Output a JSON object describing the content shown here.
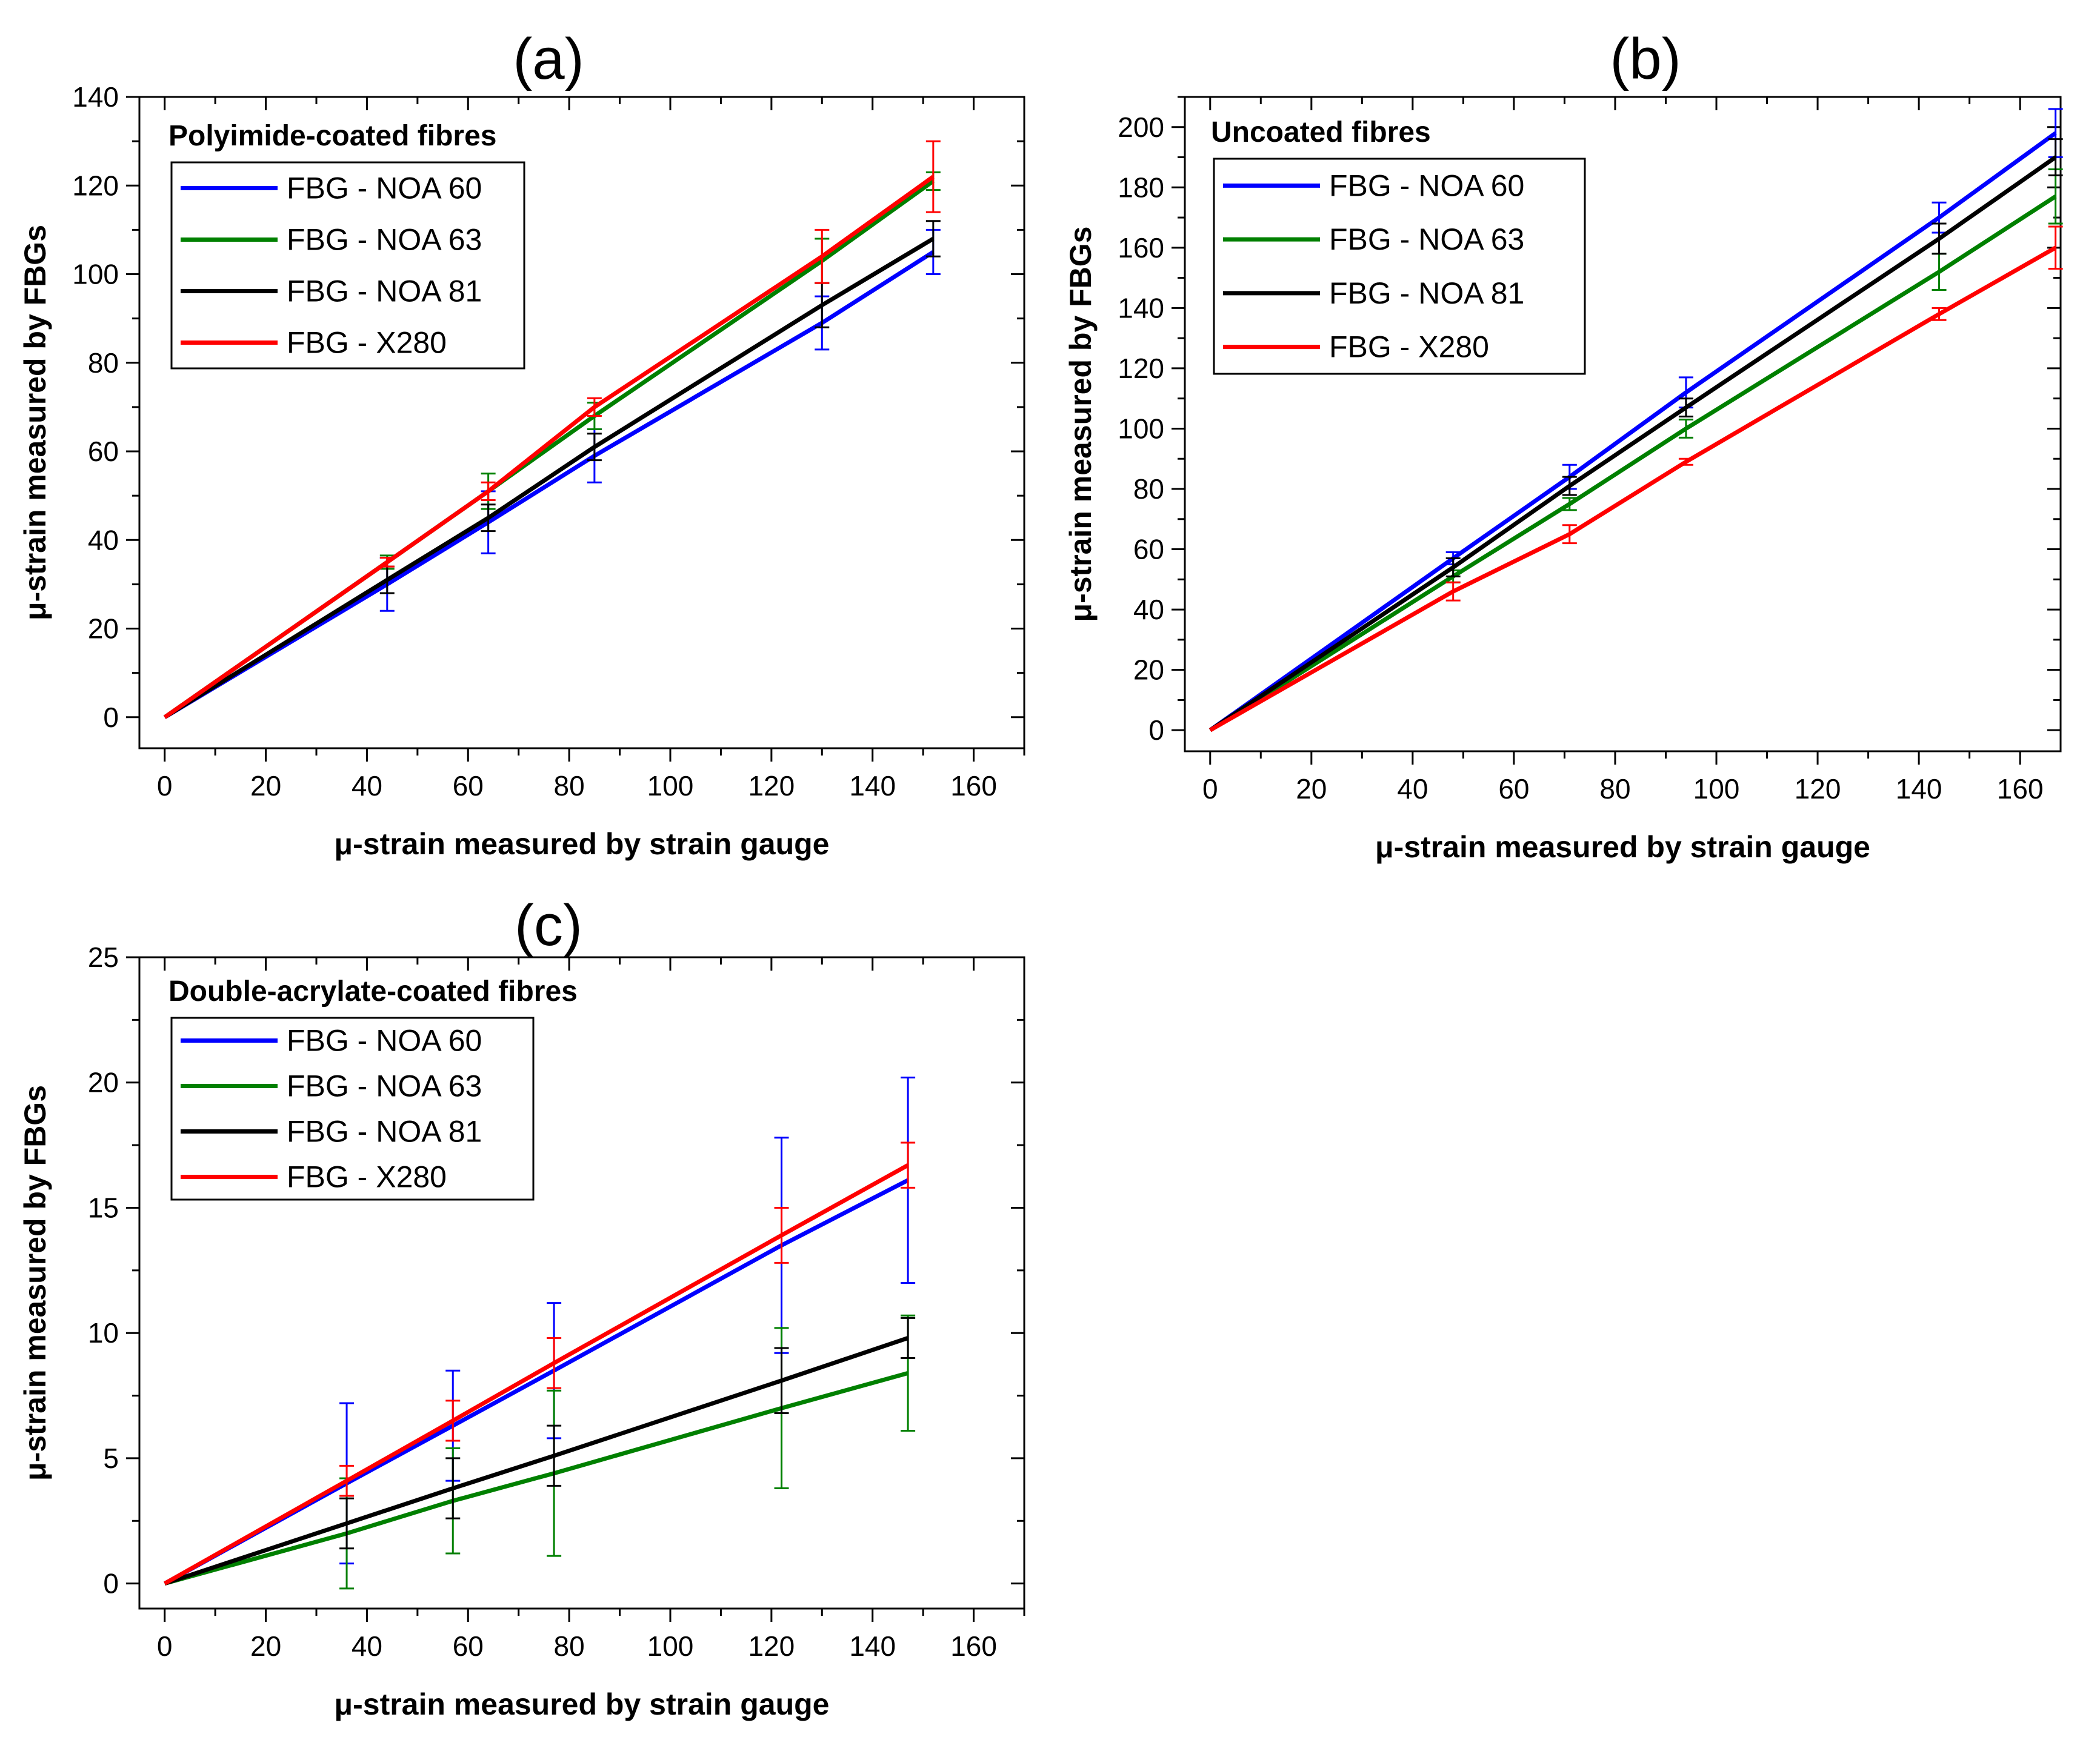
{
  "figure": {
    "series_names": [
      "FBG - NOA 60",
      "FBG - NOA 63",
      "FBG - NOA 81",
      "FBG - X280"
    ],
    "colors": {
      "FBG - NOA 60": "#0000ff",
      "FBG - NOA 63": "#008000",
      "FBG - NOA 81": "#000000",
      "FBG - X280": "#ff0000"
    }
  },
  "chart_data": [
    {
      "panel": "(a)",
      "type": "line",
      "legend_title": "Polyimide-coated fibres",
      "legend_position": "top-left",
      "xlabel": "μ-strain measured by strain gauge",
      "ylabel": "μ-strain measured by FBGs",
      "xlim": [
        -5,
        170
      ],
      "ylim": [
        -7,
        140
      ],
      "xticks": [
        0,
        20,
        40,
        60,
        80,
        100,
        120,
        140,
        160
      ],
      "yticks": [
        0,
        20,
        40,
        60,
        80,
        100,
        120,
        140
      ],
      "grid": false,
      "x": [
        0,
        44,
        64,
        85,
        130,
        152
      ],
      "series": [
        {
          "name": "FBG - NOA 60",
          "color": "#0000ff",
          "values": [
            0,
            30,
            44,
            59,
            89,
            105
          ],
          "errors": [
            0,
            6,
            7,
            6,
            6,
            5
          ]
        },
        {
          "name": "FBG - NOA 63",
          "color": "#008000",
          "values": [
            0,
            35,
            51,
            68,
            103,
            121
          ],
          "errors": [
            0,
            1.5,
            4,
            3,
            5,
            2
          ]
        },
        {
          "name": "FBG - NOA 81",
          "color": "#000000",
          "values": [
            0,
            31,
            45,
            61,
            93,
            108
          ],
          "errors": [
            0,
            3,
            3,
            3,
            5,
            4
          ]
        },
        {
          "name": "FBG - X280",
          "color": "#ff0000",
          "values": [
            0,
            35,
            51,
            70,
            104,
            122
          ],
          "errors": [
            0,
            1,
            2,
            2,
            6,
            8
          ]
        }
      ]
    },
    {
      "panel": "(b)",
      "type": "line",
      "legend_title": "Uncoated fibres",
      "legend_position": "top-left",
      "xlabel": "μ-strain measured by strain gauge",
      "ylabel": "μ-strain measured by FBGs",
      "xlim": [
        -5,
        168
      ],
      "ylim": [
        -7,
        210
      ],
      "xticks": [
        0,
        20,
        40,
        60,
        80,
        100,
        120,
        140,
        160
      ],
      "yticks": [
        0,
        20,
        40,
        60,
        80,
        100,
        120,
        140,
        160,
        180,
        200
      ],
      "grid": false,
      "x": [
        0,
        48,
        71,
        94,
        144,
        167
      ],
      "series": [
        {
          "name": "FBG - NOA 60",
          "color": "#0000ff",
          "values": [
            0,
            57,
            84,
            112,
            170,
            198
          ],
          "errors": [
            0,
            2,
            4,
            5,
            5,
            8
          ]
        },
        {
          "name": "FBG - NOA 63",
          "color": "#008000",
          "values": [
            0,
            51,
            75,
            100,
            152,
            177
          ],
          "errors": [
            0,
            2,
            2,
            3,
            6,
            9
          ]
        },
        {
          "name": "FBG - NOA 81",
          "color": "#000000",
          "values": [
            0,
            54,
            81,
            107,
            163,
            190
          ],
          "errors": [
            0,
            3,
            3,
            3,
            5,
            6
          ]
        },
        {
          "name": "FBG - X280",
          "color": "#ff0000",
          "values": [
            0,
            46,
            65,
            89,
            138,
            160
          ],
          "errors": [
            0,
            3,
            3,
            1,
            2,
            7
          ]
        }
      ]
    },
    {
      "panel": "(c)",
      "type": "line",
      "legend_title": "Double-acrylate-coated fibres",
      "legend_position": "top-left",
      "xlabel": "μ-strain measured by strain gauge",
      "ylabel": "μ-strain measured by FBGs",
      "xlim": [
        -5,
        170
      ],
      "ylim": [
        -1,
        25
      ],
      "xticks": [
        0,
        20,
        40,
        60,
        80,
        100,
        120,
        140,
        160
      ],
      "yticks": [
        0,
        5,
        10,
        15,
        20,
        25
      ],
      "grid": false,
      "x": [
        0,
        36,
        57,
        77,
        122,
        147
      ],
      "series": [
        {
          "name": "FBG - NOA 60",
          "color": "#0000ff",
          "values": [
            0,
            4.0,
            6.3,
            8.5,
            13.5,
            16.1
          ],
          "errors": [
            0,
            3.2,
            2.2,
            2.7,
            4.3,
            4.1
          ]
        },
        {
          "name": "FBG - NOA 63",
          "color": "#008000",
          "values": [
            0,
            2.0,
            3.3,
            4.4,
            7.0,
            8.4
          ],
          "errors": [
            0,
            2.2,
            2.1,
            3.3,
            3.2,
            2.3
          ]
        },
        {
          "name": "FBG - NOA 81",
          "color": "#000000",
          "values": [
            0,
            2.4,
            3.8,
            5.1,
            8.1,
            9.8
          ],
          "errors": [
            0,
            1.0,
            1.2,
            1.2,
            1.3,
            0.8
          ]
        },
        {
          "name": "FBG - X280",
          "color": "#ff0000",
          "values": [
            0,
            4.1,
            6.5,
            8.8,
            13.9,
            16.7
          ],
          "errors": [
            0,
            0.6,
            0.8,
            1.0,
            1.1,
            0.9
          ]
        }
      ]
    }
  ]
}
